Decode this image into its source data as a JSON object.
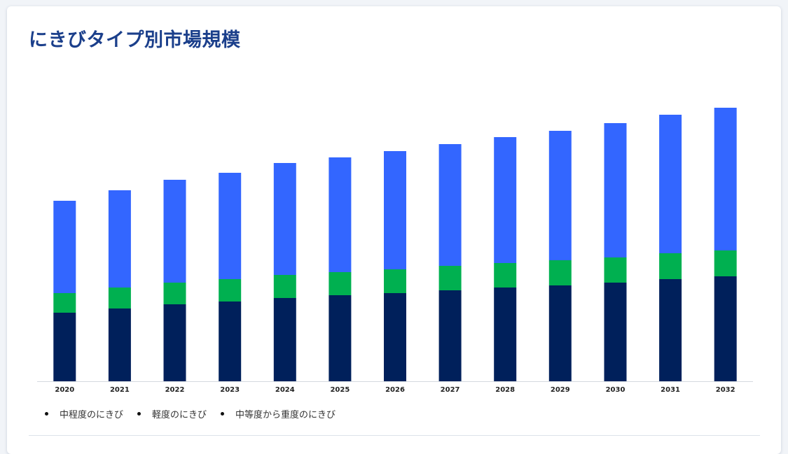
{
  "title": "にきびタイプ別市場規模",
  "chart_data": {
    "type": "bar",
    "stacked": true,
    "categories": [
      "2020",
      "2021",
      "2022",
      "2023",
      "2024",
      "2025",
      "2026",
      "2027",
      "2028",
      "2029",
      "2030",
      "2031",
      "2032"
    ],
    "series": [
      {
        "name": "中程度のにきび",
        "color": "#00205b",
        "values": [
          98,
          104,
          110,
          114,
          119,
          123,
          126,
          130,
          134,
          137,
          141,
          146,
          150
        ]
      },
      {
        "name": "軽度のにきび",
        "color": "#00b050",
        "values": [
          28,
          30,
          31,
          32,
          33,
          33,
          34,
          35,
          35,
          36,
          36,
          37,
          37
        ]
      },
      {
        "name": "中等度から重度のにきび",
        "color": "#3366ff",
        "values": [
          132,
          139,
          147,
          152,
          160,
          164,
          169,
          174,
          180,
          185,
          192,
          198,
          204
        ]
      }
    ],
    "ylim": [
      0,
      400
    ],
    "grid": false,
    "legend_position": "bottom-left"
  }
}
